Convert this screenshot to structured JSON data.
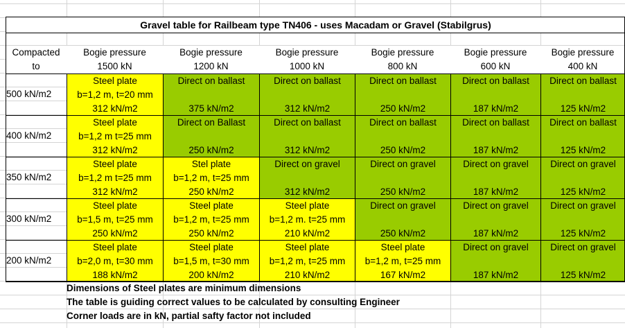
{
  "title": "Gravel table for Railbeam type TN406 - uses Macadam or Gravel (Stabilgrus)",
  "header": {
    "first_col": [
      "Compacted",
      "to"
    ],
    "columns": [
      [
        "Bogie pressure",
        "1500 kN"
      ],
      [
        "Bogie pressure",
        "1200 kN"
      ],
      [
        "Bogie pressure",
        "1000 kN"
      ],
      [
        "Bogie pressure",
        "800 kN"
      ],
      [
        "Bogie pressure",
        "600 kN"
      ],
      [
        "Bogie pressure",
        "400 kN"
      ]
    ]
  },
  "rows": [
    {
      "label": "500 kN/m2",
      "cells": [
        {
          "lines": [
            "Steel plate",
            "b=1,2 m, t=20 mm",
            "312 kN/m2"
          ],
          "color": "yellow"
        },
        {
          "lines": [
            "Direct on ballast",
            "",
            "375 kN/m2"
          ],
          "color": "green"
        },
        {
          "lines": [
            "Direct on ballast",
            "",
            "312 kN/m2"
          ],
          "color": "green"
        },
        {
          "lines": [
            "Direct on ballast",
            "",
            "250 kN/m2"
          ],
          "color": "green"
        },
        {
          "lines": [
            "Direct on ballast",
            "",
            "187 kN/m2"
          ],
          "color": "green"
        },
        {
          "lines": [
            "Direct on ballast",
            "",
            "125 kN/m2"
          ],
          "color": "green"
        }
      ]
    },
    {
      "label": "400 kN/m2",
      "cells": [
        {
          "lines": [
            "Steel plate",
            "b=1,2 m t=25 mm",
            "312 kN/m2"
          ],
          "color": "yellow"
        },
        {
          "lines": [
            "Direct on Ballast",
            "",
            "250 kN/m2"
          ],
          "color": "green"
        },
        {
          "lines": [
            "Direct on ballast",
            "",
            "312 kN/m2"
          ],
          "color": "green"
        },
        {
          "lines": [
            "Direct on ballast",
            "",
            "250 kN/m2"
          ],
          "color": "green"
        },
        {
          "lines": [
            "Direct on ballast",
            "",
            "187 kN/m2"
          ],
          "color": "green"
        },
        {
          "lines": [
            "Direct on ballast",
            "",
            "125 kN/m2"
          ],
          "color": "green"
        }
      ]
    },
    {
      "label": "350 kN/m2",
      "cells": [
        {
          "lines": [
            "Steel plate",
            "b=1,2 m t=25 mm",
            "312 kN/m2"
          ],
          "color": "yellow"
        },
        {
          "lines": [
            "Stel plate",
            "b=1,2 m, t=25 mm",
            "250 kN/m2"
          ],
          "color": "yellow"
        },
        {
          "lines": [
            "Direct on gravel",
            "",
            "312 kN/m2"
          ],
          "color": "green"
        },
        {
          "lines": [
            "Direct on gravel",
            "",
            "250 kN/m2"
          ],
          "color": "green"
        },
        {
          "lines": [
            "Direct on gravel",
            "",
            "187 kN/m2"
          ],
          "color": "green"
        },
        {
          "lines": [
            "Direct on gravel",
            "",
            "125 kN/m2"
          ],
          "color": "green"
        }
      ]
    },
    {
      "label": "300 kN/m2",
      "cells": [
        {
          "lines": [
            "Steel plate",
            "b=1,5 m, t=25 mm",
            "250 kN/m2"
          ],
          "color": "yellow"
        },
        {
          "lines": [
            "Steel plate",
            "b=1,2 m, t=25 mm",
            "250 kN/m2"
          ],
          "color": "yellow"
        },
        {
          "lines": [
            "Steel plate",
            "b=1,2 m. t=25 mm",
            "210 kN/m2"
          ],
          "color": "yellow"
        },
        {
          "lines": [
            "Direct on gravel",
            "",
            "250 kN/m2"
          ],
          "color": "green"
        },
        {
          "lines": [
            "Direct on gravel",
            "",
            "187 kN/m2"
          ],
          "color": "green"
        },
        {
          "lines": [
            "Direct on gravel",
            "",
            "125 kN/m2"
          ],
          "color": "green"
        }
      ]
    },
    {
      "label": "200 kN/m2",
      "cells": [
        {
          "lines": [
            "Steel plate",
            "b=2,0 m, t=30 mm",
            "188 kN/m2"
          ],
          "color": "yellow"
        },
        {
          "lines": [
            "Steel plate",
            "b=1,5 m, t=30 mm",
            "200 kN/m2"
          ],
          "color": "yellow"
        },
        {
          "lines": [
            "Steel plate",
            "b=1,2 m, t=25 mm",
            "210 kN/m2"
          ],
          "color": "yellow"
        },
        {
          "lines": [
            "Steel plate",
            "b=1,2 m, t=25 mm",
            "167 kN/m2"
          ],
          "color": "yellow"
        },
        {
          "lines": [
            "Direct on gravel",
            "",
            "187 kN/m2"
          ],
          "color": "green"
        },
        {
          "lines": [
            "Direct on gravel",
            "",
            "125 kN/m2"
          ],
          "color": "green"
        }
      ]
    }
  ],
  "notes": [
    "Dimensions of Steel plates are minimum dimensions",
    "The table is guiding correct values to be calculated by consulting Engineer",
    "Corner loads are in kN, partial safty factor not included"
  ],
  "colors": {
    "yellow": "#ffff00",
    "green": "#99cc00"
  }
}
